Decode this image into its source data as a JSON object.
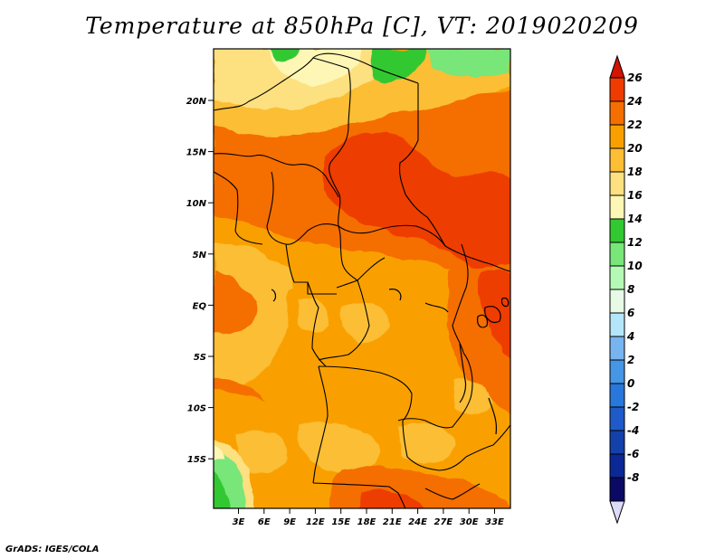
{
  "title": "Temperature at 850hPa [C], VT: 2019020209",
  "credit": "GrADS: IGES/COLA",
  "lat_labels": [
    "20N",
    "15N",
    "10N",
    "5N",
    "EQ",
    "5S",
    "10S",
    "15S"
  ],
  "lon_labels": [
    "3E",
    "6E",
    "9E",
    "12E",
    "15E",
    "18E",
    "21E",
    "24E",
    "27E",
    "30E",
    "33E"
  ],
  "colorbar": {
    "labels": [
      "26",
      "24",
      "22",
      "20",
      "18",
      "16",
      "14",
      "12",
      "10",
      "8",
      "6",
      "4",
      "2",
      "0",
      "-2",
      "-4",
      "-6",
      "-8"
    ],
    "colors": [
      "#d21400",
      "#ee3c00",
      "#f56e00",
      "#f9a000",
      "#fbbe34",
      "#fde080",
      "#fdf6b4",
      "#32c832",
      "#78e678",
      "#b4fab4",
      "#e6fae6",
      "#b4e6fa",
      "#78b4f0",
      "#4696e6",
      "#2878dc",
      "#1e5ac8",
      "#1440aa",
      "#0a2896",
      "#0a0a64"
    ],
    "under_color": "#dcdcf8"
  }
}
